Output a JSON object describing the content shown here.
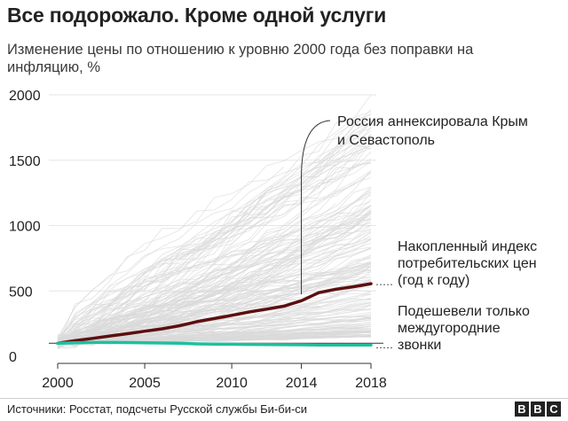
{
  "title": "Все подорожало. Кроме одной услуги",
  "subtitle": "Изменение цены по отношению к уровню 2000 года без поправки на инфляцию, %",
  "source": "Источники: Росстат, подсчеты Русской службы Би-би-си",
  "logo": [
    "B",
    "B",
    "C"
  ],
  "colors": {
    "background_lines": "#d9d9d9",
    "cpi_line": "#5c0f0f",
    "calls_line": "#1fbf9f",
    "gridline": "#e6e6e6",
    "text": "#222222"
  },
  "chart_data": {
    "type": "line",
    "title": "",
    "xlabel": "",
    "ylabel": "",
    "xlim": [
      2000,
      2018
    ],
    "ylim": [
      0,
      2000
    ],
    "x_ticks": [
      "2000",
      "2005",
      "2010",
      "2014",
      "2018"
    ],
    "y_ticks": [
      "0",
      "500",
      "1000",
      "1500",
      "2000"
    ],
    "grid": "horizontal",
    "series": [
      {
        "name": "Накопленный индекс потребительских цен (год к году)",
        "label_lines": [
          "Накопленный индекс",
          "потребительских цен",
          "(год к году)"
        ],
        "x": [
          2000,
          2001,
          2002,
          2003,
          2004,
          2005,
          2006,
          2007,
          2008,
          2009,
          2010,
          2011,
          2012,
          2013,
          2014,
          2015,
          2016,
          2017,
          2018
        ],
        "y": [
          100,
          119,
          137,
          155,
          173,
          192,
          210,
          234,
          265,
          289,
          313,
          339,
          361,
          384,
          425,
          487,
          513,
          532,
          555
        ]
      },
      {
        "name": "Подешевели только междугородние звонки",
        "label_lines": [
          "Подешевели только",
          "междугородние",
          "звонки"
        ],
        "x": [
          2000,
          2001,
          2002,
          2003,
          2004,
          2005,
          2006,
          2007,
          2008,
          2009,
          2010,
          2011,
          2012,
          2013,
          2014,
          2015,
          2016,
          2017,
          2018
        ],
        "y": [
          100,
          104,
          106,
          106,
          105,
          104,
          102,
          100,
          95,
          93,
          92,
          91,
          90,
          89,
          88,
          87,
          87,
          86,
          86
        ]
      }
    ],
    "annotations": [
      {
        "text_lines": [
          "Россия аннексировала Крым",
          "и Севастополь"
        ],
        "x": 2014
      }
    ]
  }
}
